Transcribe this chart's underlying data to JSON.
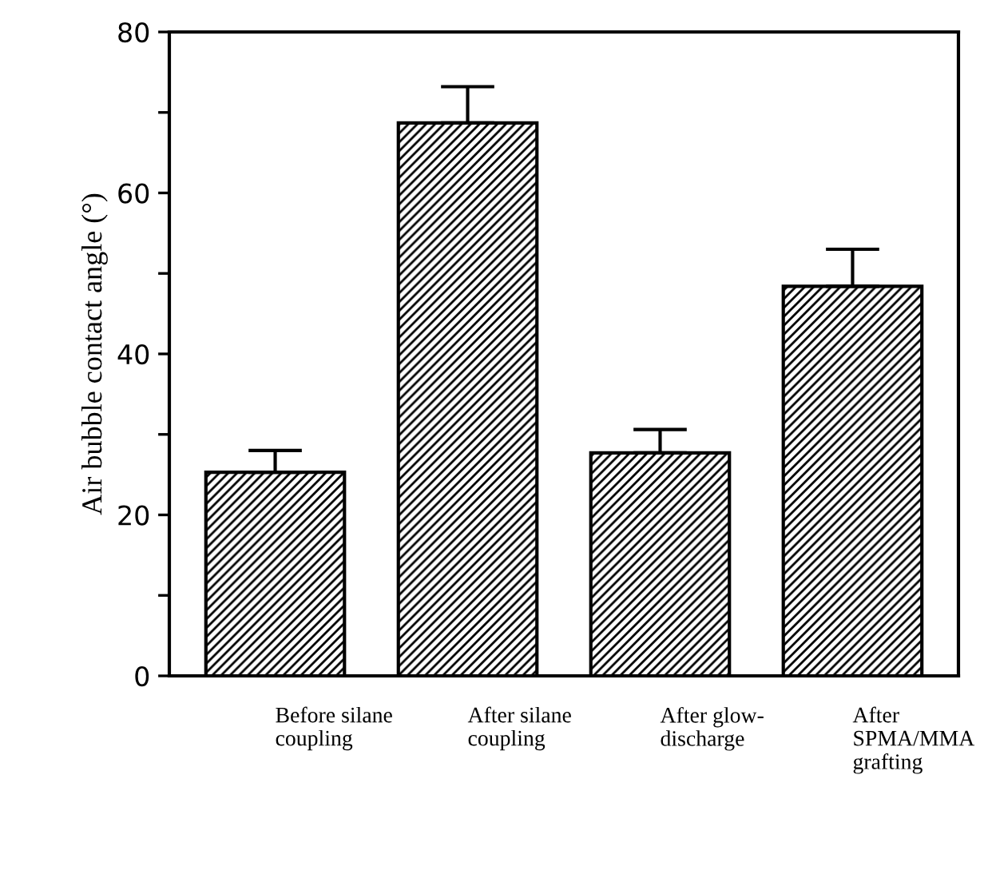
{
  "chart_data": {
    "type": "bar",
    "ylabel": "Air bubble contact angle (°)",
    "categories": [
      "Before silane\ncoupling",
      "After silane\ncoupling",
      "After glow-\ndischarge",
      "After\nSPMA/MMA\ngrafting"
    ],
    "values": [
      25.3,
      68.7,
      27.7,
      48.4
    ],
    "errors": [
      [
        25.3,
        28.0
      ],
      [
        68.7,
        73.2
      ],
      [
        27.7,
        30.6
      ],
      [
        48.4,
        53.0
      ]
    ],
    "color": "#000000",
    "ylim": [
      0,
      80
    ],
    "yticks": [
      0,
      {
        "value": 10,
        "label": null
      },
      20,
      {
        "value": 30,
        "label": null
      },
      40,
      {
        "value": 50,
        "label": null
      },
      60,
      {
        "value": 70,
        "label": null
      },
      80
    ],
    "grid": false
  }
}
